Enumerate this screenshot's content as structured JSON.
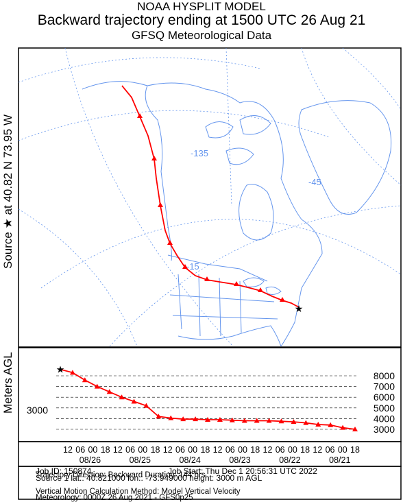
{
  "title": {
    "line1": "NOAA HYSPLIT MODEL",
    "line2": "Backward trajectory ending at 1500 UTC 26 Aug 21",
    "line3": "GFSQ Meteorological Data"
  },
  "side_labels": {
    "source": "Source ★  at   40.82 N   73.95 W",
    "agl": "Meters AGL"
  },
  "map": {
    "meridian_labels": [
      "-135",
      "-45",
      "-15"
    ]
  },
  "chart_data": {
    "type": "line",
    "title": "",
    "xlabel": "",
    "ylabel": "Meters AGL",
    "x_tick_labels": [
      "12",
      "06",
      "00",
      "18",
      "12",
      "06",
      "00",
      "18",
      "12",
      "06",
      "00",
      "18",
      "12",
      "06",
      "00",
      "18",
      "12",
      "06",
      "00",
      "18",
      "12",
      "06",
      "00",
      "18"
    ],
    "date_labels": [
      "08/26",
      "08/25",
      "08/24",
      "08/23",
      "08/22",
      "08/21"
    ],
    "y_ticks": [
      3000,
      4000,
      5000,
      6000,
      7000,
      8000
    ],
    "y_tick_labels": [
      "3000",
      "4000",
      "5000",
      "6000",
      "7000",
      "8000"
    ],
    "source_height_label": "3000",
    "ylim": [
      2450,
      8900
    ],
    "x_hours_back": [
      0,
      6,
      12,
      18,
      24,
      30,
      36,
      42,
      48,
      54,
      60,
      66,
      72,
      78,
      84,
      90,
      96,
      102,
      108,
      114,
      120,
      126,
      132,
      138,
      144
    ],
    "series": [
      {
        "color": "#ff0000",
        "values": [
          3000,
          3150,
          3400,
          3450,
          3600,
          3700,
          3750,
          3800,
          3800,
          3800,
          3850,
          3900,
          3900,
          3950,
          3950,
          4050,
          4200,
          5200,
          5600,
          6000,
          6500,
          7000,
          7600,
          8300,
          8600
        ]
      }
    ]
  },
  "info": {
    "job_id": "Job ID: 150874",
    "job_start": "Job Start: Thu Dec  1 20:56:31 UTC 2022",
    "source_line": "Source 1       lat.: 40.821000      lon.: -73.949000      height: 3000 m AGL",
    "direction": "Trajectory Direction: Backward       Duration: 144 hrs",
    "vertical": "Vertical Motion Calculation Method:        Model Vertical Velocity",
    "meteorology": "Meteorology: 0000Z 26 Aug 2021 - GFS0p25"
  },
  "colors": {
    "trajectory": "#ff0000",
    "map_lines": "#6495ed",
    "frame": "#000000"
  }
}
